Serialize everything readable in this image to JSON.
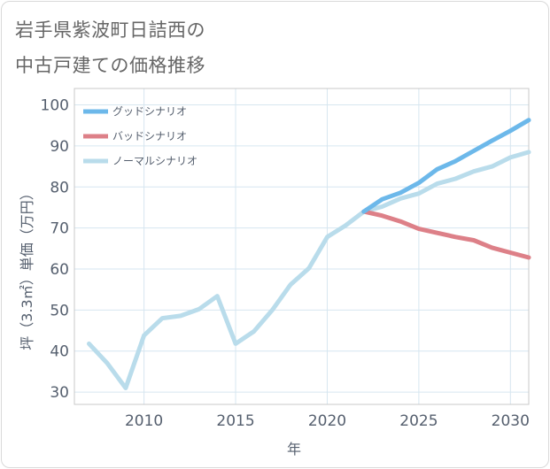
{
  "title": {
    "line1": "岩手県紫波町日詰西の",
    "line2": "中古戸建ての価格推移"
  },
  "chart_data": {
    "type": "line",
    "title": "岩手県紫波町日詰西の中古戸建ての価格推移",
    "xlabel": "年",
    "ylabel": "坪（3.3㎡）単価（万円）",
    "xlim": [
      2006.2,
      2031
    ],
    "ylim": [
      27,
      104
    ],
    "xticks": [
      2010,
      2015,
      2020,
      2025,
      2030
    ],
    "yticks": [
      30,
      40,
      50,
      60,
      70,
      80,
      90,
      100
    ],
    "grid": true,
    "legend_position": "top-left",
    "series": [
      {
        "name": "グッドシナリオ",
        "color": "#6cb8ea",
        "x": [
          2022,
          2023,
          2024,
          2025,
          2026,
          2027,
          2028,
          2029,
          2030,
          2031
        ],
        "values": [
          74,
          77,
          78.6,
          81,
          84.3,
          86.3,
          88.8,
          91.3,
          93.7,
          96.3
        ]
      },
      {
        "name": "バッドシナリオ",
        "color": "#dd8088",
        "x": [
          2022,
          2023,
          2024,
          2025,
          2026,
          2027,
          2028,
          2029,
          2030,
          2031
        ],
        "values": [
          74,
          73,
          71.6,
          69.8,
          68.8,
          67.8,
          67,
          65.2,
          64,
          62.8
        ]
      },
      {
        "name": "ノーマルシナリオ",
        "color": "#b9dceb",
        "x": [
          2007,
          2008,
          2009,
          2010,
          2011,
          2012,
          2013,
          2014,
          2015,
          2016,
          2017,
          2018,
          2019,
          2020,
          2021,
          2022,
          2023,
          2024,
          2025,
          2026,
          2027,
          2028,
          2029,
          2030,
          2031
        ],
        "values": [
          41.8,
          37,
          31,
          43.8,
          48,
          48.6,
          50.2,
          53.4,
          41.8,
          44.8,
          50,
          56.2,
          60.2,
          67.8,
          70.6,
          74,
          75.2,
          77.2,
          78.4,
          80.8,
          82,
          83.8,
          85,
          87.2,
          88.5
        ]
      }
    ]
  }
}
